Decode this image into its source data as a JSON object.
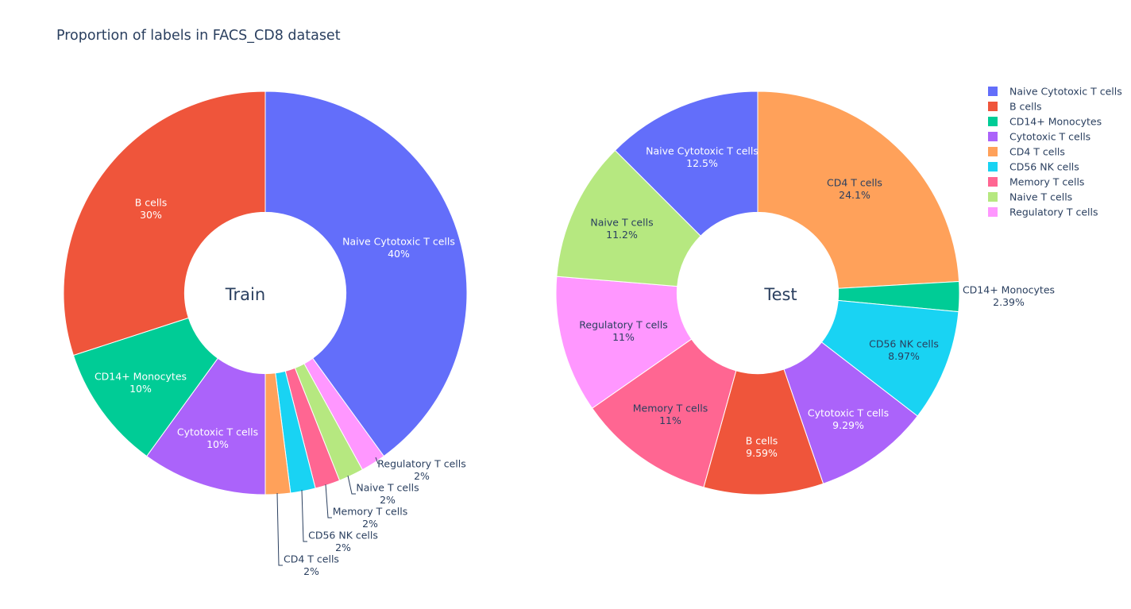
{
  "chart_data": {
    "type": "pie",
    "title": "Proportion of labels in FACS_CD8 dataset",
    "hole": 0.4,
    "colors": {
      "Naive Cytotoxic T cells": "#636efa",
      "B cells": "#ef553b",
      "CD14+ Monocytes": "#00cc96",
      "Cytotoxic T cells": "#ab63fa",
      "CD4 T cells": "#ffa15a",
      "CD56 NK cells": "#19d3f3",
      "Memory T cells": "#ff6692",
      "Naive T cells": "#b6e880",
      "Regulatory T cells": "#ff97ff"
    },
    "legend": {
      "placement": "top-right",
      "entries": [
        "Naive Cytotoxic T cells",
        "B cells",
        "CD14+ Monocytes",
        "Cytotoxic T cells",
        "CD4 T cells",
        "CD56 NK cells",
        "Memory T cells",
        "Naive T cells",
        "Regulatory T cells"
      ]
    },
    "pies": [
      {
        "name": "Train",
        "center_label": "Train",
        "slices": [
          {
            "label": "Naive Cytotoxic T cells",
            "value": 40,
            "text": "40%"
          },
          {
            "label": "Regulatory T cells",
            "value": 2,
            "text": "2%"
          },
          {
            "label": "Naive T cells",
            "value": 2,
            "text": "2%"
          },
          {
            "label": "Memory T cells",
            "value": 2,
            "text": "2%"
          },
          {
            "label": "CD56 NK cells",
            "value": 2,
            "text": "2%"
          },
          {
            "label": "CD4 T cells",
            "value": 2,
            "text": "2%"
          },
          {
            "label": "Cytotoxic T cells",
            "value": 10,
            "text": "10%"
          },
          {
            "label": "CD14+ Monocytes",
            "value": 10,
            "text": "10%"
          },
          {
            "label": "B cells",
            "value": 30,
            "text": "30%"
          }
        ]
      },
      {
        "name": "Test",
        "center_label": "Test",
        "slices": [
          {
            "label": "CD4 T cells",
            "value": 24.1,
            "text": "24.1%"
          },
          {
            "label": "CD14+ Monocytes",
            "value": 2.39,
            "text": "2.39%"
          },
          {
            "label": "CD56 NK cells",
            "value": 8.97,
            "text": "8.97%"
          },
          {
            "label": "Cytotoxic T cells",
            "value": 9.29,
            "text": "9.29%"
          },
          {
            "label": "B cells",
            "value": 9.59,
            "text": "9.59%"
          },
          {
            "label": "Memory T cells",
            "value": 11,
            "text": "11%"
          },
          {
            "label": "Regulatory T cells",
            "value": 11,
            "text": "11%"
          },
          {
            "label": "Naive T cells",
            "value": 11.2,
            "text": "11.2%"
          },
          {
            "label": "Naive Cytotoxic T cells",
            "value": 12.5,
            "text": "12.5%"
          }
        ]
      }
    ]
  }
}
